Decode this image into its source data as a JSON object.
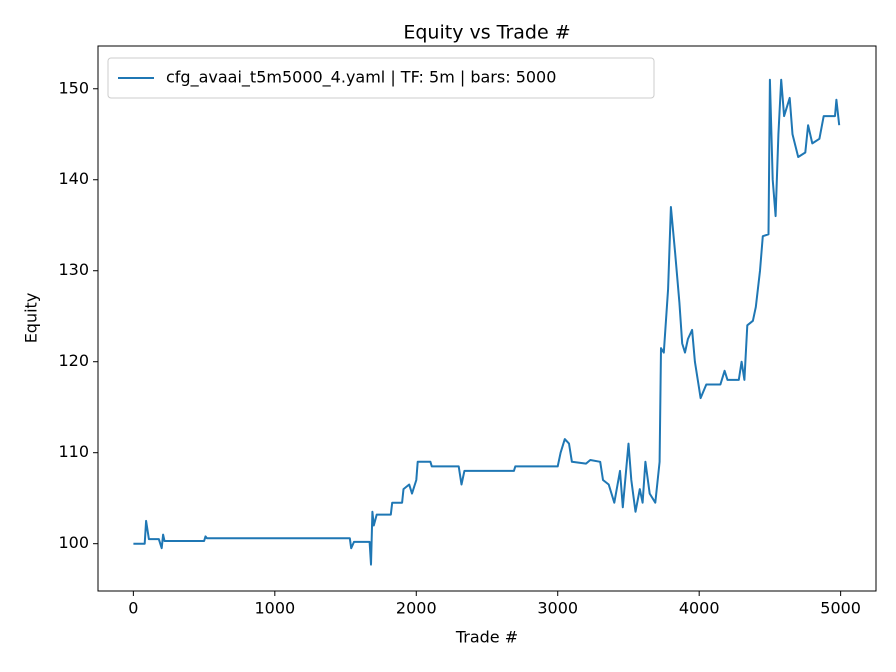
{
  "chart_data": {
    "type": "line",
    "title": "Equity vs Trade #",
    "xlabel": "Trade #",
    "ylabel": "Equity",
    "x": [
      0,
      80,
      90,
      100,
      110,
      130,
      180,
      200,
      210,
      220,
      500,
      510,
      520,
      1530,
      1540,
      1560,
      1670,
      1680,
      1690,
      1700,
      1720,
      1820,
      1830,
      1900,
      1910,
      1950,
      1970,
      2000,
      2010,
      2100,
      2110,
      2300,
      2320,
      2340,
      2690,
      2700,
      3000,
      3020,
      3050,
      3080,
      3100,
      3200,
      3230,
      3300,
      3320,
      3360,
      3400,
      3440,
      3460,
      3500,
      3520,
      3550,
      3580,
      3600,
      3620,
      3650,
      3690,
      3720,
      3730,
      3750,
      3780,
      3800,
      3830,
      3860,
      3880,
      3900,
      3920,
      3950,
      3970,
      4000,
      4010,
      4050,
      4150,
      4180,
      4200,
      4280,
      4300,
      4320,
      4340,
      4380,
      4400,
      4430,
      4450,
      4490,
      4500,
      4520,
      4540,
      4560,
      4580,
      4600,
      4640,
      4660,
      4700,
      4750,
      4770,
      4800,
      4850,
      4880,
      4960,
      4970,
      4990
    ],
    "series": [
      {
        "name": "cfg_avaai_t5m5000_4.yaml | TF: 5m | bars: 5000",
        "color": "#1f77b4",
        "values": [
          100,
          100,
          102.5,
          101.5,
          100.5,
          100.5,
          100.5,
          99.5,
          101,
          100.3,
          100.3,
          100.8,
          100.6,
          100.6,
          99.5,
          100.2,
          100.2,
          97.7,
          103.5,
          102,
          103.2,
          103.2,
          104.5,
          104.5,
          106,
          106.5,
          105.5,
          107,
          109,
          109,
          108.5,
          108.5,
          106.5,
          108,
          108,
          108.5,
          108.5,
          110,
          111.5,
          111,
          109,
          108.8,
          109.2,
          109,
          107,
          106.5,
          104.5,
          108,
          104,
          111,
          107,
          103.5,
          106,
          104.5,
          109,
          105.5,
          104.5,
          109,
          121.5,
          121,
          128,
          137,
          132,
          126.5,
          122,
          121,
          122.5,
          123.5,
          120,
          117,
          116,
          117.5,
          117.5,
          119,
          118,
          118,
          120,
          118,
          124,
          124.5,
          126,
          130,
          133.8,
          134,
          151,
          140,
          136,
          145,
          151,
          147,
          149,
          145,
          142.5,
          143,
          146,
          144,
          144.5,
          147,
          147,
          148.8,
          146
        ]
      }
    ],
    "xlim": [
      -250,
      5250
    ],
    "ylim": [
      94.8,
      154.7
    ],
    "xticks": [
      0,
      1000,
      2000,
      3000,
      4000,
      5000
    ],
    "yticks": [
      100,
      110,
      120,
      130,
      140,
      150
    ],
    "legend": "upper left"
  }
}
